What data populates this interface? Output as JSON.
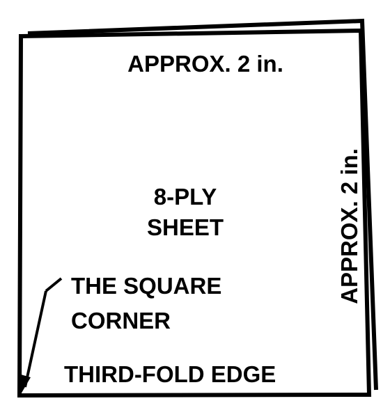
{
  "diagram": {
    "top_dimension_label": "APPROX. 2 in.",
    "side_dimension_label": "APPROX. 2 in.",
    "center_label_line1": "8-PLY",
    "center_label_line2": "SHEET",
    "corner_label_line1": "THE SQUARE",
    "corner_label_line2": "CORNER",
    "bottom_edge_label": "THIRD-FOLD EDGE"
  },
  "colors": {
    "ink": "#000000",
    "paper": "#ffffff"
  }
}
